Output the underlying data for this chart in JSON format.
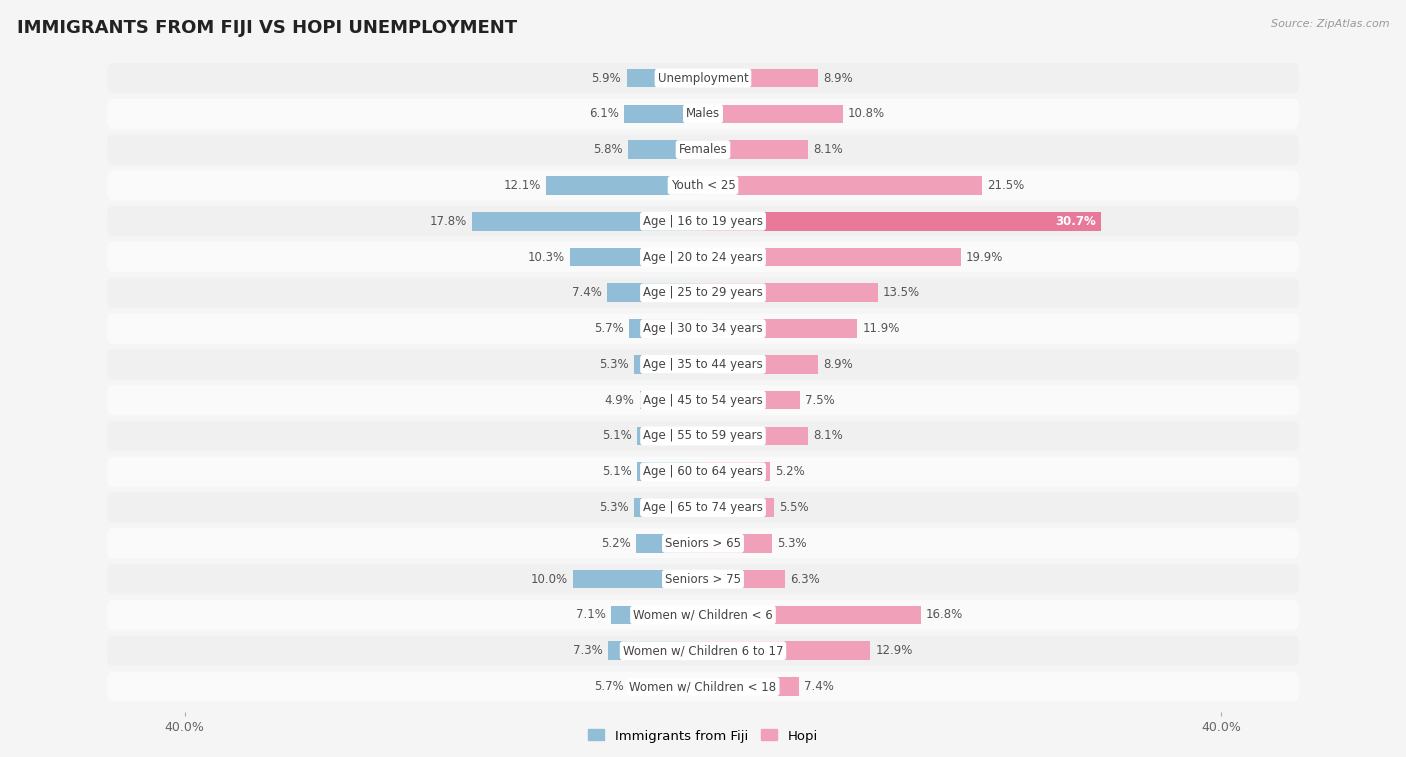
{
  "title": "IMMIGRANTS FROM FIJI VS HOPI UNEMPLOYMENT",
  "source": "Source: ZipAtlas.com",
  "categories": [
    "Unemployment",
    "Males",
    "Females",
    "Youth < 25",
    "Age | 16 to 19 years",
    "Age | 20 to 24 years",
    "Age | 25 to 29 years",
    "Age | 30 to 34 years",
    "Age | 35 to 44 years",
    "Age | 45 to 54 years",
    "Age | 55 to 59 years",
    "Age | 60 to 64 years",
    "Age | 65 to 74 years",
    "Seniors > 65",
    "Seniors > 75",
    "Women w/ Children < 6",
    "Women w/ Children 6 to 17",
    "Women w/ Children < 18"
  ],
  "fiji_values": [
    5.9,
    6.1,
    5.8,
    12.1,
    17.8,
    10.3,
    7.4,
    5.7,
    5.3,
    4.9,
    5.1,
    5.1,
    5.3,
    5.2,
    10.0,
    7.1,
    7.3,
    5.7
  ],
  "hopi_values": [
    8.9,
    10.8,
    8.1,
    21.5,
    30.7,
    19.9,
    13.5,
    11.9,
    8.9,
    7.5,
    8.1,
    5.2,
    5.5,
    5.3,
    6.3,
    16.8,
    12.9,
    7.4
  ],
  "fiji_color": "#92bdd6",
  "hopi_color": "#f0a0b8",
  "hopi_color_dark": "#e8799a",
  "row_color_even": "#f0f0f0",
  "row_color_odd": "#fafafa",
  "background_color": "#f5f5f5",
  "axis_max": 40.0,
  "bar_height": 0.52,
  "legend_fiji": "Immigrants from Fiji",
  "legend_hopi": "Hopi",
  "value_fontsize": 8.5,
  "label_fontsize": 8.5,
  "title_fontsize": 13
}
